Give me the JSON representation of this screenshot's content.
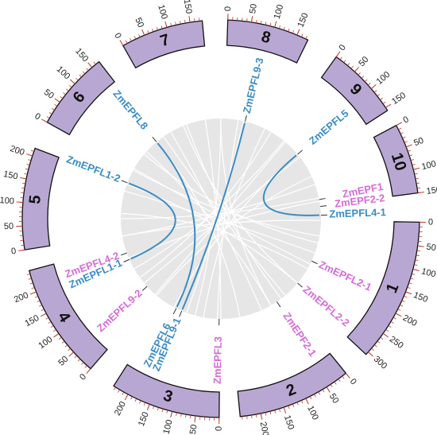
{
  "chromosomes": [
    {
      "label": "8",
      "ticks": [
        0,
        50,
        100,
        150
      ]
    },
    {
      "label": "9",
      "ticks": [
        0,
        50,
        100,
        150
      ]
    },
    {
      "label": "10",
      "ticks": [
        0,
        50,
        100,
        150
      ]
    },
    {
      "label": "1",
      "ticks": [
        0,
        50,
        100,
        150,
        200,
        250,
        300
      ]
    },
    {
      "label": "2",
      "ticks": [
        0,
        50,
        100,
        150,
        200
      ]
    },
    {
      "label": "3",
      "ticks": [
        0,
        50,
        100,
        150,
        200
      ]
    },
    {
      "label": "4",
      "ticks": [
        0,
        50,
        100,
        150,
        200
      ]
    },
    {
      "label": "5",
      "ticks": [
        0,
        50,
        100,
        150,
        200
      ]
    },
    {
      "label": "6",
      "ticks": [
        0,
        50,
        100,
        150
      ]
    },
    {
      "label": "7",
      "ticks": [
        0,
        50,
        100,
        150
      ]
    }
  ],
  "genes": [
    {
      "label": "ZmEPFL9-3",
      "color": "#3a8cc4"
    },
    {
      "label": "ZmEPFL5",
      "color": "#3a8cc4"
    },
    {
      "label": "ZmEPF1",
      "color": "#d66bd9"
    },
    {
      "label": "ZmEPF2-2",
      "color": "#d66bd9"
    },
    {
      "label": "ZmEPFL4-1",
      "color": "#3a8cc4"
    },
    {
      "label": "ZmEPFL2-1",
      "color": "#d66bd9"
    },
    {
      "label": "ZmEPFL2-2",
      "color": "#d66bd9"
    },
    {
      "label": "ZmEPF2-1",
      "color": "#d66bd9"
    },
    {
      "label": "ZmEPFL3",
      "color": "#d66bd9"
    },
    {
      "label": "ZmEPFL9-1",
      "color": "#3a8cc4"
    },
    {
      "label": "ZmEPFL6",
      "color": "#3a8cc4"
    },
    {
      "label": "ZmEPFL9-2",
      "color": "#d66bd9"
    },
    {
      "label": "ZmEPFL1-1",
      "color": "#3a8cc4"
    },
    {
      "label": "ZmEPFL4-2",
      "color": "#d66bd9"
    },
    {
      "label": "ZmEPFL1-2",
      "color": "#3a8cc4"
    },
    {
      "label": "ZmEPFL8",
      "color": "#3a8cc4"
    }
  ]
}
